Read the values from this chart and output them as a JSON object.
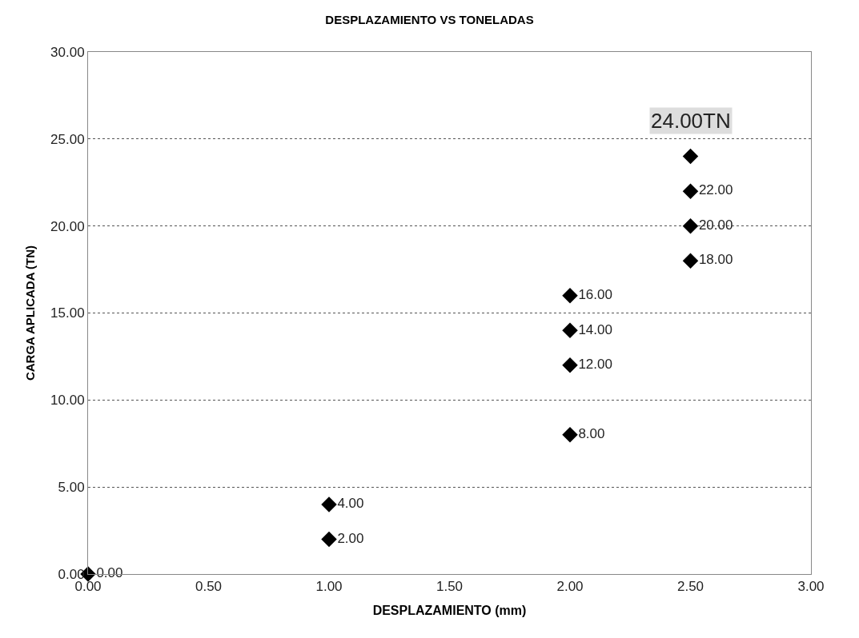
{
  "chart_data": {
    "type": "scatter",
    "title": "DESPLAZAMIENTO VS TONELADAS",
    "xlabel": "DESPLAZAMIENTO (mm)",
    "ylabel": "CARGA APLICADA (TN)",
    "x": [
      0,
      1,
      1,
      2,
      2,
      2,
      2,
      2.5,
      2.5,
      2.5,
      2.5
    ],
    "values": [
      0,
      2,
      4,
      8,
      12,
      14,
      16,
      18,
      20,
      22,
      24
    ],
    "value_labels": [
      "0.00",
      "2.00",
      "4.00",
      "8.00",
      "12.00",
      "14.00",
      "16.00",
      "18.00",
      "20.00",
      "22.00",
      null
    ],
    "color": "#000000",
    "marker": "diamond",
    "annotations": [
      {
        "text": "24.00TN",
        "x": 2.5,
        "y": 24
      }
    ],
    "xlim": [
      0,
      3
    ],
    "xticks": [
      {
        "value": 0,
        "label": "0.00"
      },
      {
        "value": 0.5,
        "label": "0.50"
      },
      {
        "value": 1,
        "label": "1.00"
      },
      {
        "value": 1.5,
        "label": "1.50"
      },
      {
        "value": 2,
        "label": "2.00"
      },
      {
        "value": 2.5,
        "label": "2.50"
      },
      {
        "value": 3,
        "label": "3.00"
      }
    ],
    "ylim": [
      0,
      30
    ],
    "yticks": [
      {
        "value": 0,
        "label": "0.00"
      },
      {
        "value": 5,
        "label": "5.00"
      },
      {
        "value": 10,
        "label": "10.00"
      },
      {
        "value": 15,
        "label": "15.00"
      },
      {
        "value": 20,
        "label": "20.00"
      },
      {
        "value": 25,
        "label": "25.00"
      },
      {
        "value": 30,
        "label": "30.00"
      }
    ],
    "grid": "y"
  }
}
